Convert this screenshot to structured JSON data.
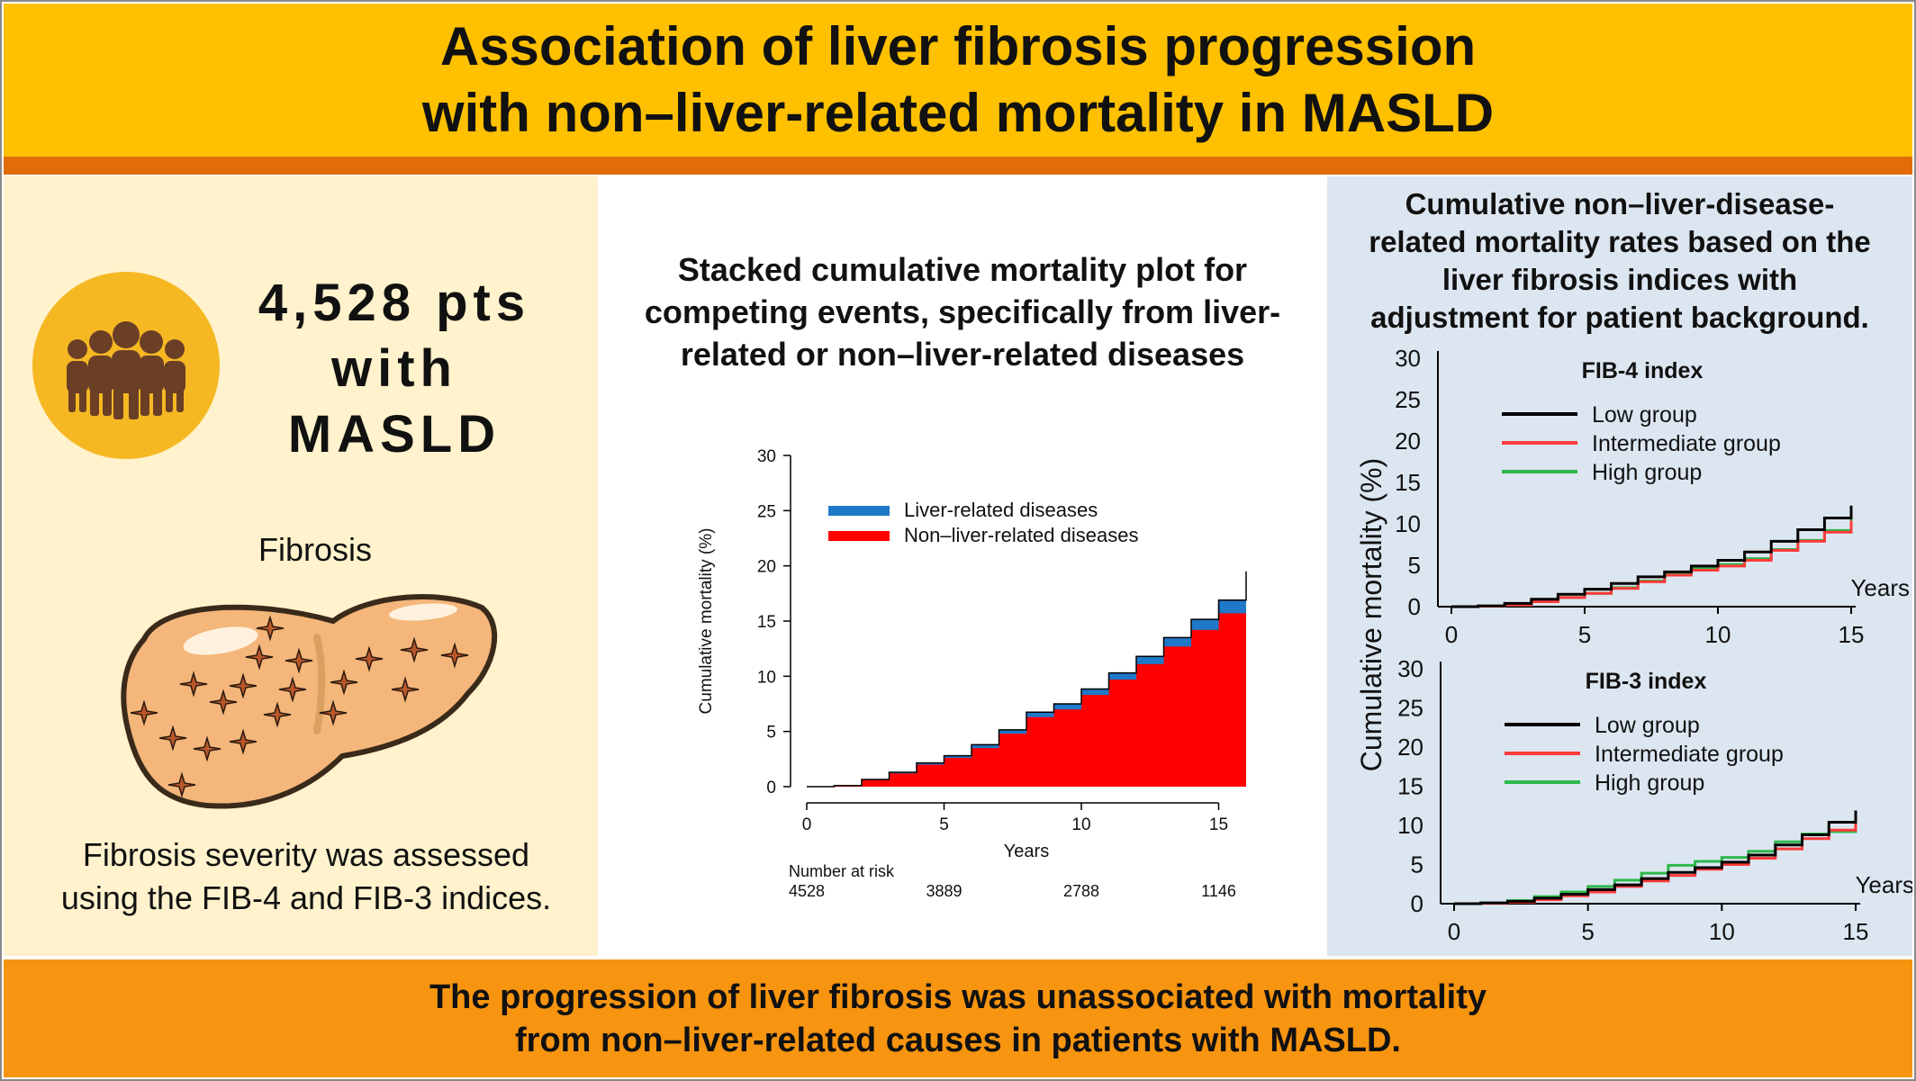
{
  "header": {
    "title_line1": "Association of liver fibrosis progression",
    "title_line2": "with non–liver-related mortality in MASLD"
  },
  "left": {
    "count_line1": "4,528 pts",
    "count_line2": "with",
    "count_line3": "MASLD",
    "fibrosis_label": "Fibrosis",
    "desc_line1": "Fibrosis severity was assessed",
    "desc_line2": "using the FIB-4 and FIB-3 indices.",
    "icon_names": [
      "people-group-icon",
      "liver-icon"
    ]
  },
  "middle": {
    "title_line1": "Stacked cumulative mortality plot for",
    "title_line2": "competing events, specifically from liver-",
    "title_line3": "related or non–liver-related diseases"
  },
  "right": {
    "title_line1": "Cumulative non–liver-disease-",
    "title_line2": "related mortality rates based on the",
    "title_line3": "liver fibrosis indices with",
    "title_line4": "adjustment for patient background.",
    "ylabel": "Cumulative mortality (%)"
  },
  "footer": {
    "line1": "The progression of liver fibrosis was unassociated with mortality",
    "line2": "from non–liver-related causes in patients with MASLD."
  },
  "colors": {
    "header": "#FFC000",
    "header_bar": "#E36C0A",
    "footer": "#F79410",
    "left_panel": "#FFF2CC",
    "right_panel": "#DCE6F1",
    "liver_related": "#1F78C8",
    "non_liver_related": "#FF0000",
    "low_group": "#000000",
    "intermediate_group": "#FF3B3B",
    "high_group": "#2DB84B"
  },
  "chart_data": [
    {
      "type": "area",
      "stacked": true,
      "xlabel": "Years",
      "ylabel": "Cumulative mortality (%)",
      "xlim": [
        0,
        16
      ],
      "ylim": [
        0,
        30
      ],
      "x_ticks": [
        0,
        5,
        10,
        15
      ],
      "y_ticks": [
        0,
        5,
        10,
        15,
        20,
        25,
        30
      ],
      "legend_position": "top-left",
      "risk_table_label": "Number at risk",
      "risk_table": [
        {
          "x": 0,
          "n": "4528"
        },
        {
          "x": 5,
          "n": "3889"
        },
        {
          "x": 10,
          "n": "2788"
        },
        {
          "x": 15,
          "n": "1146"
        }
      ],
      "x": [
        0,
        1,
        2,
        3,
        4,
        5,
        6,
        7,
        8,
        9,
        10,
        11,
        12,
        13,
        14,
        15,
        16
      ],
      "series": [
        {
          "name": "Non–liver-related diseases",
          "values": [
            0,
            0.1,
            0.6,
            1.2,
            2.0,
            2.6,
            3.5,
            4.8,
            6.3,
            7.0,
            8.3,
            9.7,
            11.1,
            12.7,
            14.2,
            15.7,
            17.8
          ]
        },
        {
          "name": "Liver-related diseases",
          "values": [
            0,
            0,
            0.05,
            0.1,
            0.15,
            0.2,
            0.3,
            0.35,
            0.45,
            0.5,
            0.55,
            0.6,
            0.7,
            0.8,
            0.95,
            1.2,
            1.7
          ]
        }
      ]
    },
    {
      "type": "line",
      "title": "FIB-4 index",
      "xlabel": "Years",
      "xlim": [
        0,
        15
      ],
      "ylim": [
        0,
        30
      ],
      "x_ticks": [
        0,
        5,
        10,
        15
      ],
      "y_ticks": [
        0,
        5,
        10,
        15,
        20,
        25,
        30
      ],
      "legend_position": "top-left",
      "x": [
        0,
        1,
        2,
        3,
        4,
        5,
        6,
        7,
        8,
        9,
        10,
        11,
        12,
        13,
        14,
        15
      ],
      "series": [
        {
          "name": "Low group",
          "values": [
            0,
            0.1,
            0.4,
            0.9,
            1.5,
            2.1,
            2.8,
            3.6,
            4.2,
            4.9,
            5.6,
            6.6,
            7.9,
            9.3,
            10.7,
            12.2
          ]
        },
        {
          "name": "Intermediate group",
          "values": [
            0,
            0.05,
            0.2,
            0.6,
            1.1,
            1.6,
            2.2,
            3.0,
            3.8,
            4.4,
            4.9,
            5.6,
            6.8,
            7.9,
            9.0,
            10.4
          ]
        },
        {
          "name": "High group",
          "values": [
            0,
            0.05,
            0.2,
            0.6,
            1.1,
            1.6,
            2.3,
            3.1,
            4.1,
            4.7,
            5.1,
            5.8,
            6.9,
            8.0,
            9.2,
            10.6
          ]
        }
      ]
    },
    {
      "type": "line",
      "title": "FIB-3 index",
      "xlabel": "Years",
      "xlim": [
        0,
        15
      ],
      "ylim": [
        0,
        30
      ],
      "x_ticks": [
        0,
        5,
        10,
        15
      ],
      "y_ticks": [
        0,
        5,
        10,
        15,
        20,
        25,
        30
      ],
      "legend_position": "top-left",
      "x": [
        0,
        1,
        2,
        3,
        4,
        5,
        6,
        7,
        8,
        9,
        10,
        11,
        12,
        13,
        14,
        15
      ],
      "series": [
        {
          "name": "Low group",
          "values": [
            0,
            0.1,
            0.3,
            0.7,
            1.2,
            1.8,
            2.4,
            3.2,
            4.0,
            4.6,
            5.3,
            6.2,
            7.5,
            8.8,
            10.4,
            11.9
          ]
        },
        {
          "name": "Intermediate group",
          "values": [
            0,
            0.05,
            0.2,
            0.5,
            1.0,
            1.5,
            2.2,
            2.9,
            3.6,
            4.4,
            5.0,
            5.8,
            7.0,
            8.3,
            9.4,
            10.6
          ]
        },
        {
          "name": "High group",
          "values": [
            0,
            0.1,
            0.4,
            0.9,
            1.5,
            2.2,
            3.0,
            3.9,
            4.9,
            5.4,
            5.9,
            6.7,
            7.9,
            8.9,
            9.2,
            9.8
          ]
        }
      ]
    }
  ]
}
